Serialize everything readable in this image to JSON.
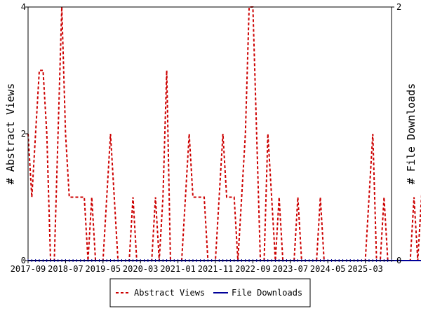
{
  "chart_data": {
    "type": "line",
    "title": "",
    "xlabel": "",
    "ylabel_left": "# Abstract Views",
    "ylabel_right": "# File Downloads",
    "x_start": "2017-09",
    "x_end": "2025-10",
    "ylim_left": [
      0,
      4
    ],
    "ylim_right": [
      0,
      2
    ],
    "y_ticks_left": [
      "0",
      "2",
      "4"
    ],
    "y_ticks_right": [
      "0",
      "2"
    ],
    "x_ticks": [
      "2017-09",
      "2018-07",
      "2019-05",
      "2020-03",
      "2021-01",
      "2021-11",
      "2022-09",
      "2023-07",
      "2024-05",
      "2025-03"
    ],
    "grid": false,
    "legend_position": "bottom",
    "series": [
      {
        "name": "Abstract Views",
        "axis": "left",
        "color": "#cc0000",
        "style": "dashed",
        "values": [
          2,
          1,
          2,
          3,
          3,
          2,
          0,
          0,
          2,
          4,
          2,
          1,
          1,
          1,
          1,
          1,
          0,
          1,
          0,
          0,
          0,
          1,
          2,
          1,
          0,
          0,
          0,
          0,
          1,
          0,
          0,
          0,
          0,
          0,
          1,
          0,
          1,
          3,
          0,
          0,
          0,
          0,
          1,
          2,
          1,
          1,
          1,
          1,
          0,
          0,
          0,
          1,
          2,
          1,
          1,
          1,
          0,
          1,
          2,
          4,
          4,
          2,
          0,
          0,
          2,
          1,
          0,
          1,
          0,
          0,
          0,
          0,
          1,
          0,
          0,
          0,
          0,
          0,
          1,
          0,
          0,
          0,
          0,
          0,
          0,
          0,
          0,
          0,
          0,
          0,
          0,
          1,
          2,
          0,
          0,
          1,
          0,
          0,
          0,
          0,
          0,
          0,
          0,
          1,
          0,
          1,
          2,
          0,
          0,
          0,
          0,
          0,
          1,
          0,
          0,
          0,
          0,
          0,
          0,
          0,
          0,
          0,
          1
        ]
      },
      {
        "name": "File Downloads",
        "axis": "right",
        "color": "#000099",
        "style": "solid",
        "values": [
          0,
          0,
          0,
          0,
          0,
          0,
          0,
          0,
          0,
          0,
          0,
          0,
          0,
          0,
          0,
          0,
          0,
          0,
          0,
          0,
          0,
          0,
          0,
          0,
          0,
          0,
          0,
          0,
          0,
          0,
          0,
          0,
          0,
          0,
          0,
          0,
          0,
          0,
          0,
          0,
          0,
          0,
          0,
          0,
          0,
          0,
          0,
          0,
          0,
          0,
          0,
          0,
          0,
          0,
          0,
          0,
          0,
          0,
          0,
          0,
          0,
          0,
          0,
          0,
          0,
          0,
          0,
          0,
          0,
          0,
          0,
          0,
          0,
          0,
          0,
          0,
          0,
          0,
          0,
          0,
          0,
          0,
          0,
          0,
          0,
          0,
          0,
          0,
          0,
          0,
          0,
          0,
          0,
          0,
          0,
          0,
          0,
          0,
          0,
          0,
          0,
          0,
          0,
          0,
          0,
          0,
          0,
          0,
          0,
          0,
          0,
          0,
          0,
          0,
          0,
          0,
          0,
          0,
          0,
          0,
          0,
          0
        ]
      }
    ]
  }
}
